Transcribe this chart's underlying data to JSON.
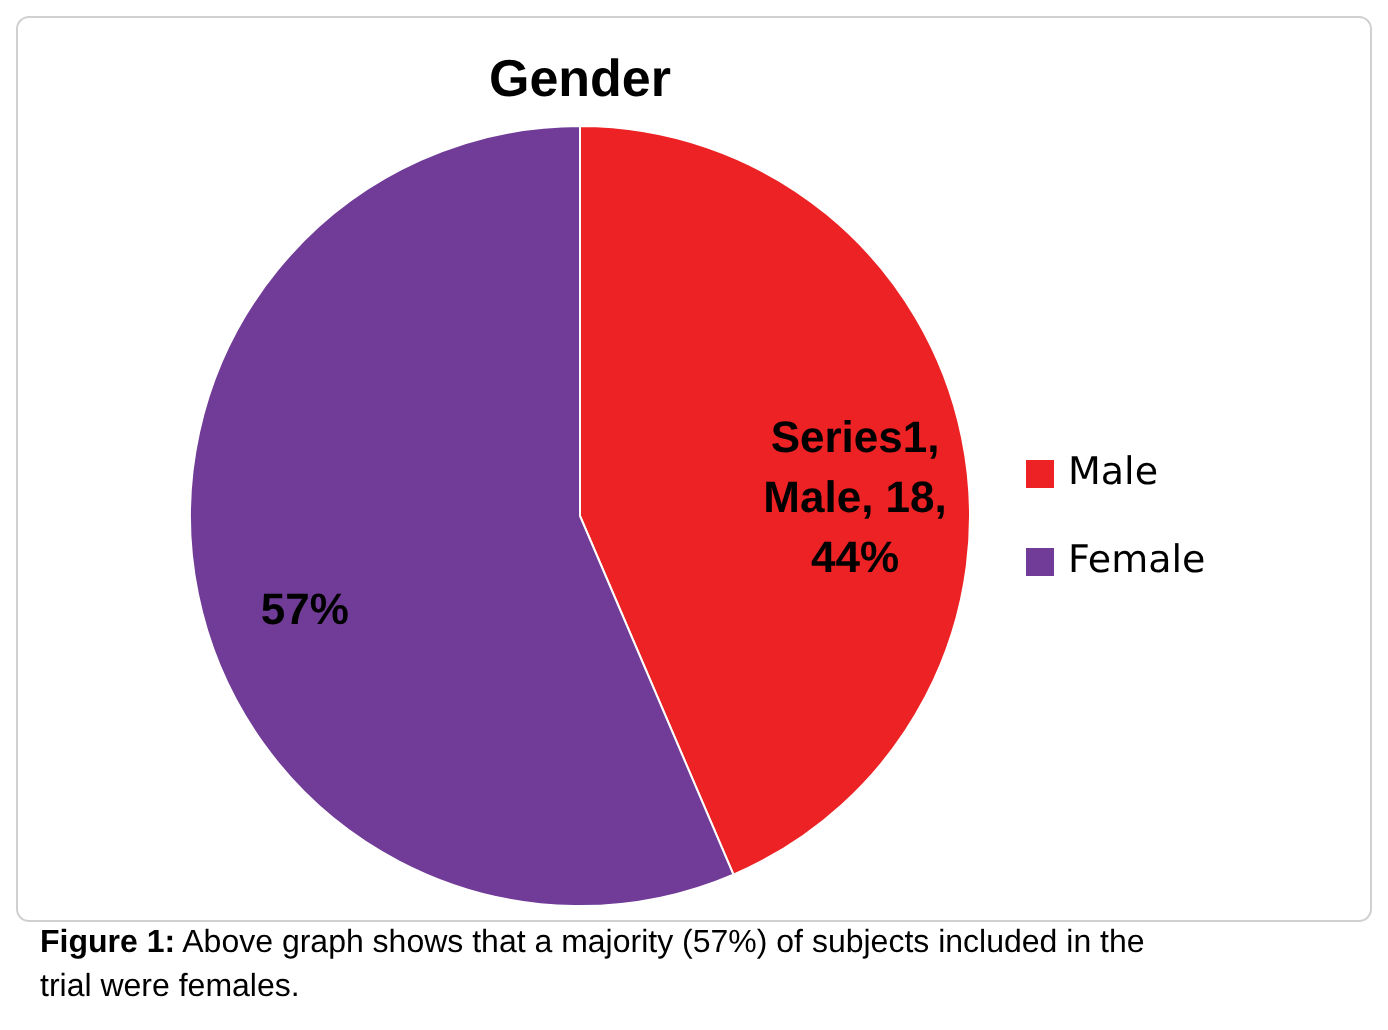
{
  "chart_data": {
    "type": "pie",
    "title": "Gender",
    "categories": [
      "Male",
      "Female"
    ],
    "values": [
      44,
      57
    ],
    "colors": [
      "#ed2224",
      "#713c97"
    ],
    "value_labels": [
      "Series1, Male, 18, 44%",
      "57%"
    ],
    "legend": "right",
    "annotations": [
      "Figure 1: Above graph shows that a majority (57%) of subjects included in the trial were females."
    ]
  }
}
